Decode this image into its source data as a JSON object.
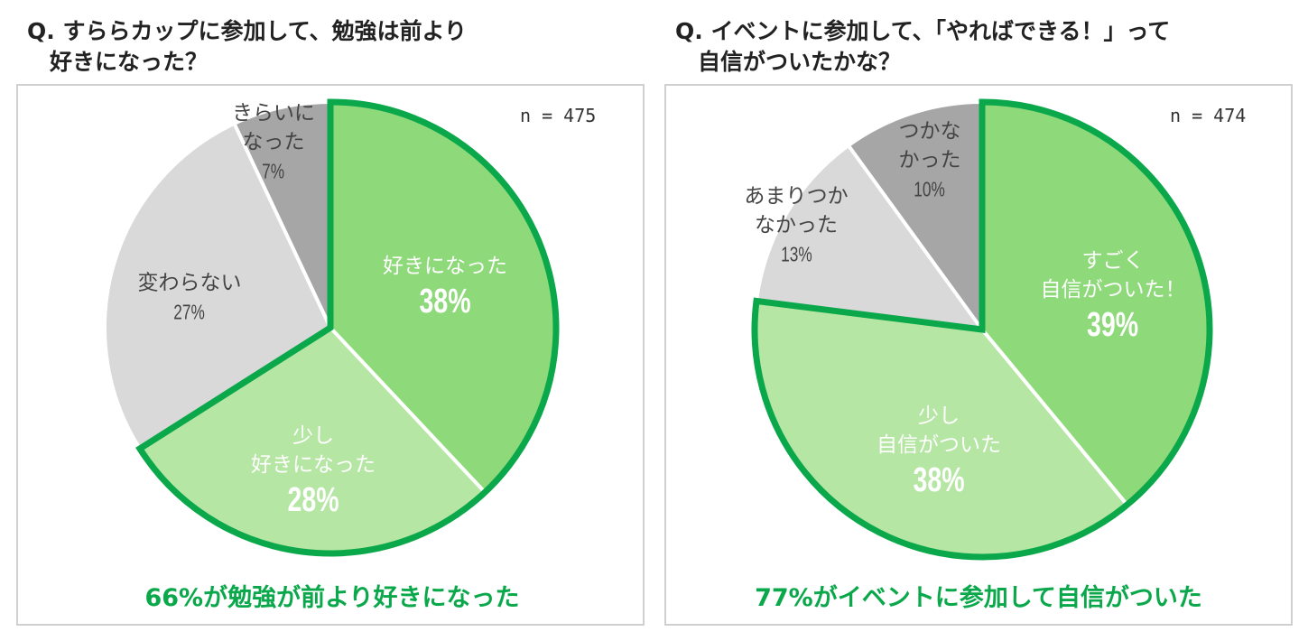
{
  "chart_data": [
    {
      "type": "pie",
      "title": "Q. すららカップに参加して、勉強は前より\n　好きになった？",
      "sample": "n = 475",
      "slices": [
        {
          "label": "好きになった",
          "value": 38,
          "color": "#8ed97a"
        },
        {
          "label": "少し\n好きになった",
          "value": 28,
          "color": "#b5e6a3"
        },
        {
          "label": "変わらない",
          "value": 27,
          "color": "#d9d9d9"
        },
        {
          "label": "きらいに\nなった",
          "value": 7,
          "color": "#a6a6a6"
        }
      ],
      "value_labels": [
        "38%",
        "28%",
        "27%",
        "7%"
      ],
      "highlight": "66%が勉強が前より好きになった",
      "highlight_color": "#0aa84a"
    },
    {
      "type": "pie",
      "title": "Q. イベントに参加して、「やればできる！」って\n　自信がついたかな？",
      "sample": "n = 474",
      "slices": [
        {
          "label": "すごく\n自信がついた！",
          "value": 39,
          "color": "#8ed97a"
        },
        {
          "label": "少し\n自信がついた",
          "value": 38,
          "color": "#b5e6a3"
        },
        {
          "label": "あまりつか\nなかった",
          "value": 13,
          "color": "#d9d9d9"
        },
        {
          "label": "つかな\nかった",
          "value": 10,
          "color": "#a6a6a6"
        }
      ],
      "value_labels": [
        "39%",
        "38%",
        "13%",
        "10%"
      ],
      "highlight": "77%がイベントに参加して自信がついた",
      "highlight_color": "#0aa84a"
    }
  ]
}
